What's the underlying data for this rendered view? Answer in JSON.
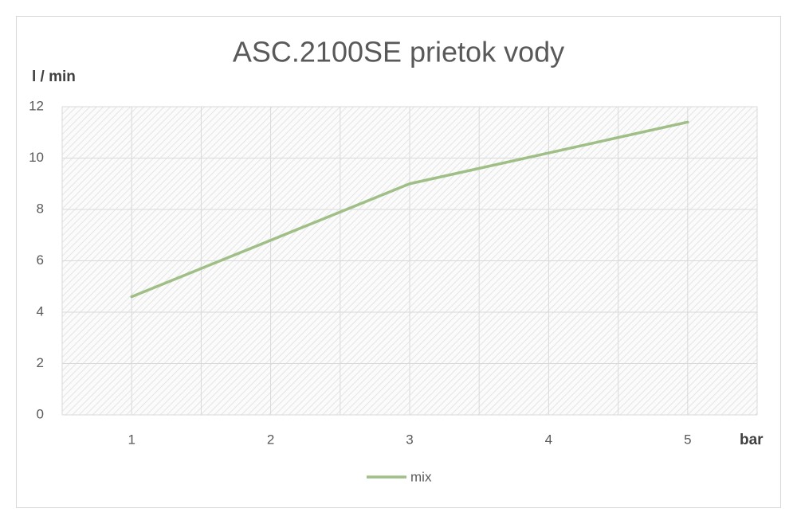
{
  "chart_data": {
    "type": "line",
    "title": "ASC.2100SE prietok vody",
    "y_label": "l / min",
    "x_label": "bar",
    "categories": [
      "1",
      "2",
      "3",
      "4",
      "5"
    ],
    "series": [
      {
        "name": "mix",
        "color": "#9fbf86",
        "values": [
          4.6,
          6.8,
          9.0,
          10.2,
          11.4
        ]
      }
    ],
    "ylim": [
      0,
      12
    ],
    "yticks": [
      0,
      2,
      4,
      6,
      8,
      10,
      12
    ],
    "grid": true,
    "legend": "bottom"
  }
}
